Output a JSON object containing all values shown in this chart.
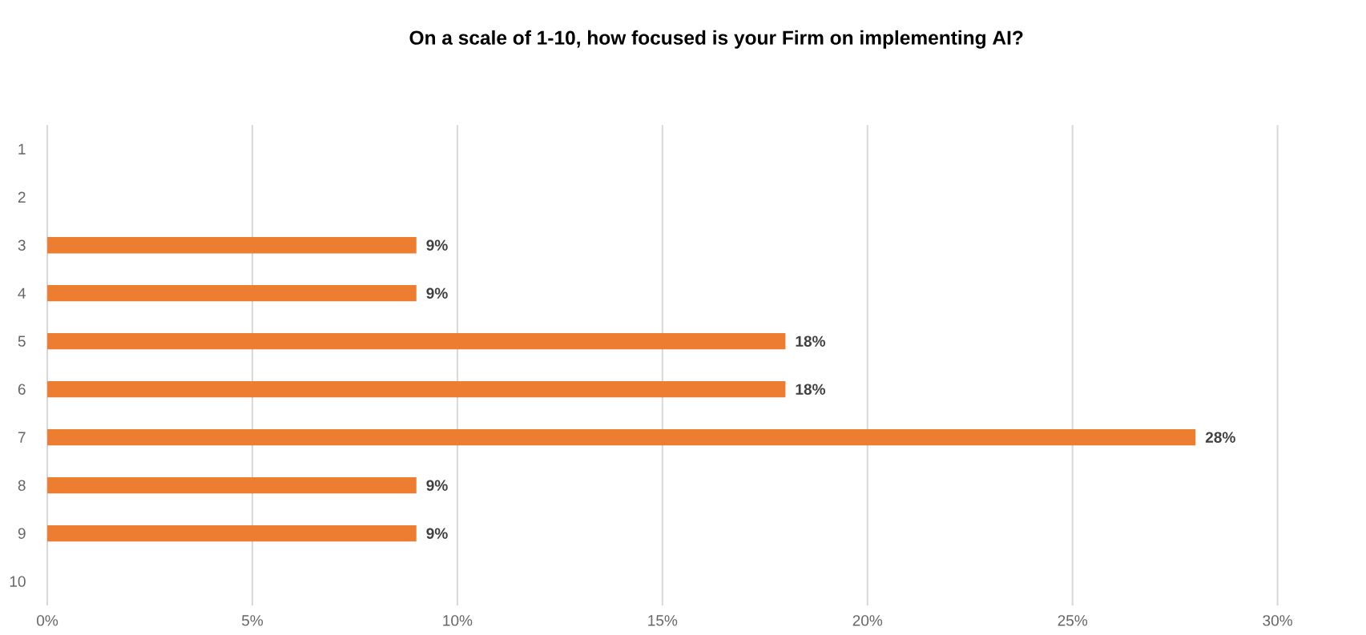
{
  "chart_data": {
    "type": "bar",
    "orientation": "horizontal",
    "title": "On a scale of 1-10, how focused is your Firm on implementing AI?",
    "categories": [
      "1",
      "2",
      "3",
      "4",
      "5",
      "6",
      "7",
      "8",
      "9",
      "10"
    ],
    "values": [
      null,
      null,
      9,
      9,
      18,
      18,
      28,
      9,
      9,
      null
    ],
    "value_labels": [
      null,
      null,
      "9%",
      "9%",
      "18%",
      "18%",
      "28%",
      "9%",
      "9%",
      null
    ],
    "color": "#ed7d31",
    "xlim": [
      0,
      30
    ],
    "xticks": [
      {
        "value": 0,
        "label": "0%"
      },
      {
        "value": 5,
        "label": "5%"
      },
      {
        "value": 10,
        "label": "10%"
      },
      {
        "value": 15,
        "label": "15%"
      },
      {
        "value": 20,
        "label": "20%"
      },
      {
        "value": 25,
        "label": "25%"
      },
      {
        "value": 30,
        "label": "30%"
      }
    ],
    "grid": "x"
  }
}
